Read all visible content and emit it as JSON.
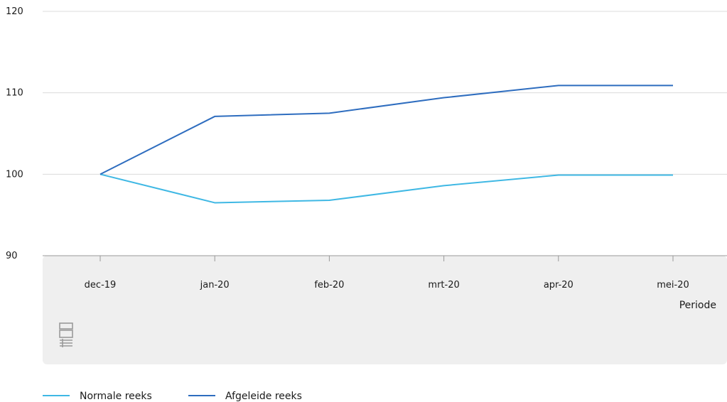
{
  "colors": {
    "normale": "#3FB8E4",
    "afgeleide": "#2E6DBF",
    "grid": "#dcdcdc",
    "axis_band": "#efefef",
    "axis_line": "#999999",
    "logo": "#9a9a9a"
  },
  "logo": {
    "text": "cbs"
  },
  "chart_data": {
    "type": "line",
    "xlabel": "Periode",
    "ylabel": "",
    "categories": [
      "dec-19",
      "jan-20",
      "feb-20",
      "mrt-20",
      "apr-20",
      "mei-20"
    ],
    "ylim": [
      90,
      120
    ],
    "yticks": [
      90,
      100,
      110,
      120
    ],
    "grid": true,
    "legend_position": "bottom-left",
    "series": [
      {
        "name": "Normale reeks",
        "color_key": "normale",
        "values": [
          100,
          96.5,
          96.8,
          98.6,
          99.9,
          99.9
        ]
      },
      {
        "name": "Afgeleide reeks",
        "color_key": "afgeleide",
        "values": [
          100,
          107.1,
          107.5,
          109.4,
          110.9,
          110.9
        ]
      }
    ]
  }
}
